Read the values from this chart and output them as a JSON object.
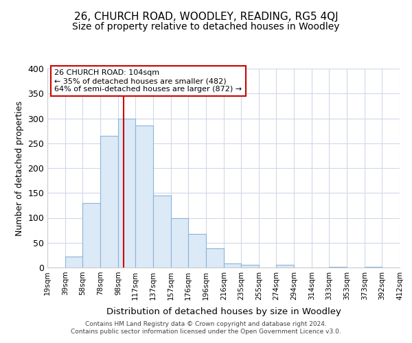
{
  "title": "26, CHURCH ROAD, WOODLEY, READING, RG5 4QJ",
  "subtitle": "Size of property relative to detached houses in Woodley",
  "xlabel": "Distribution of detached houses by size in Woodley",
  "ylabel": "Number of detached properties",
  "bar_edges": [
    19,
    39,
    58,
    78,
    98,
    117,
    137,
    157,
    176,
    196,
    216,
    235,
    255,
    274,
    294,
    314,
    333,
    353,
    373,
    392,
    412
  ],
  "bar_heights": [
    0,
    22,
    130,
    265,
    300,
    285,
    145,
    100,
    68,
    38,
    8,
    5,
    0,
    5,
    0,
    0,
    2,
    0,
    2,
    0,
    0
  ],
  "bar_color": "#dce9f7",
  "bar_edgecolor": "#8ab4d8",
  "vline_x": 104,
  "vline_color": "#cc0000",
  "annotation_line1": "26 CHURCH ROAD: 104sqm",
  "annotation_line2": "← 35% of detached houses are smaller (482)",
  "annotation_line3": "64% of semi-detached houses are larger (872) →",
  "annotation_box_edgecolor": "#cc0000",
  "annotation_box_facecolor": "#ffffff",
  "ylim": [
    0,
    400
  ],
  "yticks": [
    0,
    50,
    100,
    150,
    200,
    250,
    300,
    350,
    400
  ],
  "title_fontsize": 11,
  "subtitle_fontsize": 10,
  "footnote": "Contains HM Land Registry data © Crown copyright and database right 2024.\nContains public sector information licensed under the Open Government Licence v3.0.",
  "background_color": "#ffffff",
  "grid_color": "#d0d8e8"
}
